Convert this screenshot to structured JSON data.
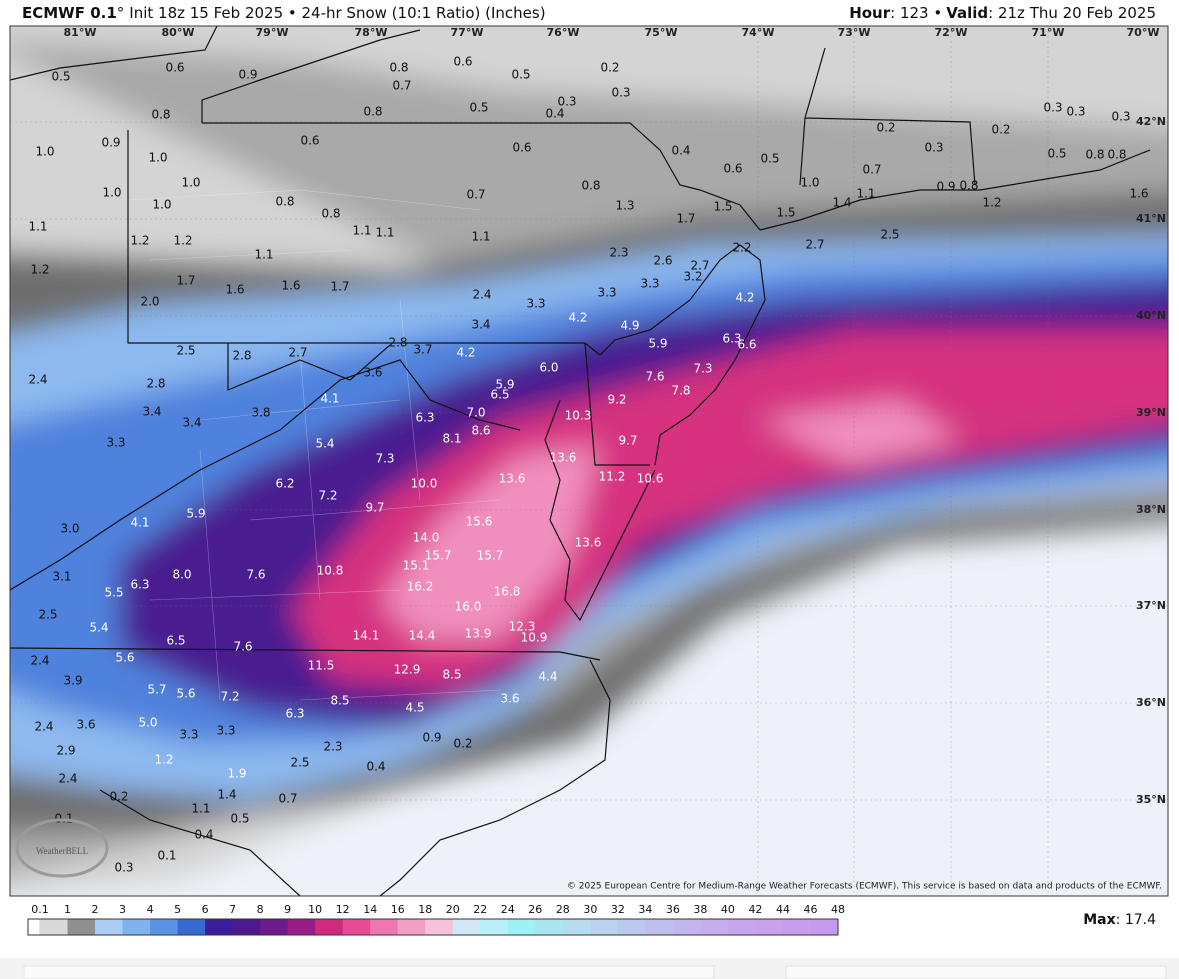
{
  "header": {
    "model": "ECMWF 0.1",
    "model_unit": "°",
    "info": "Init 18z 15 Feb 2025 • 24-hr Snow (10:1 Ratio) (Inches)",
    "hour_label": "Hour",
    "hour_value": ": 123 •",
    "valid_label": "Valid",
    "valid_value": ": 21z Thu 20 Feb 2025"
  },
  "longitudes": [
    "81°W",
    "80°W",
    "79°W",
    "78°W",
    "77°W",
    "76°W",
    "75°W",
    "74°W",
    "73°W",
    "72°W",
    "71°W",
    "70°W"
  ],
  "latitudes": [
    "42°N",
    "41°N",
    "40°N",
    "39°N",
    "38°N",
    "37°N",
    "36°N",
    "35°N"
  ],
  "snow_labels": [
    "0.5",
    "0.6",
    "0.9",
    "0.8",
    "0.7",
    "0.6",
    "0.5",
    "0.2",
    "0.3",
    "0.3",
    "0.4",
    "0.5",
    "0.8",
    "0.8",
    "0.9",
    "1.0",
    "1.0",
    "0.6",
    "0.6",
    "0.4",
    "0.6",
    "0.5",
    "0.2",
    "0.3",
    "0.2",
    "0.3",
    "0.3",
    "0.3",
    "0.5",
    "0.8",
    "0.8",
    "0.7",
    "1.0",
    "1.1",
    "1.4",
    "0.9",
    "0.8",
    "1.2",
    "1.6",
    "1.0",
    "1.0",
    "1.0",
    "0.8",
    "0.8",
    "0.7",
    "0.8",
    "1.3",
    "1.7",
    "1.5",
    "1.5",
    "2.2",
    "2.7",
    "2.5",
    "1.1",
    "1.1",
    "1.1",
    "1.1",
    "1.2",
    "1.2",
    "1.2",
    "1.1",
    "1.7",
    "1.6",
    "1.6",
    "1.7",
    "2.0",
    "2.4",
    "3.3",
    "2.3",
    "2.6",
    "2.7",
    "3.2",
    "3.3",
    "3.3",
    "4.2",
    "3.4",
    "4.9",
    "4.2",
    "2.5",
    "2.8",
    "2.7",
    "2.8",
    "3.7",
    "4.2",
    "2.4",
    "2.8",
    "3.6",
    "6.0",
    "5.9",
    "6.5",
    "5.9",
    "6.3",
    "6.6",
    "7.6",
    "7.3",
    "7.8",
    "9.2",
    "10.3",
    "9.7",
    "3.4",
    "3.4",
    "3.8",
    "4.1",
    "6.3",
    "7.0",
    "8.6",
    "8.1",
    "3.3",
    "5.4",
    "7.3",
    "13.6",
    "13.6",
    "11.2",
    "10.6",
    "6.2",
    "10.0",
    "7.2",
    "9.7",
    "5.9",
    "4.1",
    "3.0",
    "15.6",
    "14.0",
    "15.7",
    "15.7",
    "13.6",
    "15.1",
    "16.2",
    "16.8",
    "8.0",
    "6.3",
    "5.5",
    "3.1",
    "7.6",
    "10.8",
    "16.0",
    "2.5",
    "5.4",
    "6.5",
    "7.6",
    "14.1",
    "14.4",
    "13.9",
    "12.3",
    "10.9",
    "2.4",
    "5.6",
    "11.5",
    "12.9",
    "8.5",
    "4.4",
    "3.9",
    "5.7",
    "5.6",
    "7.2",
    "8.5",
    "3.6",
    "6.3",
    "4.5",
    "2.4",
    "3.6",
    "5.0",
    "3.3",
    "3.3",
    "0.9",
    "0.2",
    "2.3",
    "2.9",
    "1.2",
    "2.5",
    "0.4",
    "2.4",
    "1.9",
    "1.4",
    "0.2",
    "0.7",
    "1.1",
    "0.1",
    "0.5",
    "0.4",
    "0.1",
    "0.3"
  ],
  "copyright": "© 2025 European Centre for Medium-Range Weather Forecasts (ECMWF). This service is based on data and products of the ECMWF.",
  "logo": "WeatherBELL",
  "legend": {
    "ticks": [
      "0.1",
      "1",
      "2",
      "3",
      "4",
      "5",
      "6",
      "7",
      "8",
      "9",
      "10",
      "12",
      "14",
      "16",
      "18",
      "20",
      "22",
      "24",
      "26",
      "28",
      "30",
      "32",
      "34",
      "36",
      "38",
      "40",
      "42",
      "44",
      "46",
      "48"
    ],
    "colors": [
      "#d9d9d9",
      "#8f8f8f",
      "#a9cdf5",
      "#80b3ee",
      "#5a93e3",
      "#3868d2",
      "#3a1f9a",
      "#4d1a8e",
      "#6d1a8a",
      "#9a1c86",
      "#cf2a7e",
      "#e84b93",
      "#ee77b0",
      "#f29fc6",
      "#f5c2da",
      "#d3e8f6",
      "#b9f0f8",
      "#9ef1f4",
      "#aae6ef",
      "#b5dcef",
      "#b8d2ef",
      "#bbc9ee",
      "#bfbfee",
      "#c3b6ee",
      "#c6aeee",
      "#c8a6ed",
      "#c9a2ec",
      "#c89ded",
      "#c89aed"
    ],
    "max_label": "Max",
    "max_value": ": 17.4"
  }
}
